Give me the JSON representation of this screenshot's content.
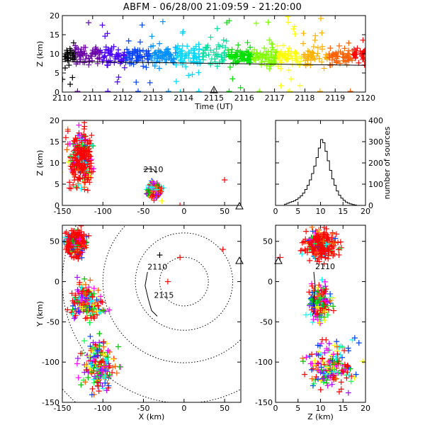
{
  "title": "ABFM - 06/28/00 21:09:59 - 21:20:00",
  "chart_data": [
    {
      "type": "scatter",
      "id": "time-height",
      "xlabel": "Time (UT)",
      "ylabel": "Z (km)",
      "xlim": [
        2110,
        2120
      ],
      "ylim": [
        0,
        20
      ],
      "xticks": [
        "2110",
        "2111",
        "2112",
        "2113",
        "2114",
        "2115",
        "2116",
        "2117",
        "2118",
        "2119",
        "2120"
      ],
      "yticks": [
        "0",
        "5",
        "10",
        "15",
        "20"
      ],
      "color_scale": "time: black → purple → blue → cyan → green → yellow → orange → red",
      "sources_summary": {
        "core_altitude_km": [
          6,
          12
        ],
        "scatter_altitude_km": [
          0,
          20
        ]
      },
      "trend_line": {
        "start_z": 8,
        "end_z": 7
      },
      "ground_markers_at_z": 0,
      "station_marker": "triangle at x 2115, z 0"
    },
    {
      "type": "scatter",
      "id": "x-height",
      "xlabel": "",
      "ylabel": "Z (km)",
      "xlim": [
        -150,
        70
      ],
      "ylim": [
        0,
        20
      ],
      "xticks": [
        "-150",
        "-100",
        "-50",
        "0",
        "50"
      ],
      "yticks": [
        "0",
        "5",
        "10",
        "15",
        "20"
      ],
      "annotation": "2110",
      "clusters": [
        {
          "x_range": [
            -150,
            -105
          ],
          "z_range": [
            2,
            20
          ],
          "dominant_color": "red"
        },
        {
          "x_range": [
            -50,
            -25
          ],
          "z_range": [
            1,
            6
          ],
          "dominant_color": "mixed"
        }
      ],
      "track": [
        [
          -50,
          8.5
        ],
        [
          -44,
          8.6
        ],
        [
          -38,
          8.5
        ],
        [
          -34,
          7.6
        ]
      ],
      "isolated_points": [
        [
          50,
          6
        ],
        [
          -5,
          0
        ]
      ],
      "station_marker": "triangle at x 70, z 0"
    },
    {
      "type": "bar",
      "id": "altitude-histogram",
      "xlabel": "",
      "ylabel": "number of sources",
      "xlim": [
        0,
        20
      ],
      "ylim": [
        0,
        400
      ],
      "xticks": [
        "0",
        "5",
        "10",
        "15",
        "20"
      ],
      "yticks": [
        "0",
        "100",
        "200",
        "300",
        "400"
      ],
      "bin_width_km": 0.5,
      "bins_start": [
        2,
        2.5,
        3,
        3.5,
        4,
        4.5,
        5,
        5.5,
        6,
        6.5,
        7,
        7.5,
        8,
        8.5,
        9,
        9.5,
        10,
        10.5,
        11,
        11.5,
        12,
        12.5,
        13,
        13.5,
        14,
        14.5,
        15,
        15.5,
        16,
        16.5,
        17,
        17.5
      ],
      "values": [
        6,
        10,
        14,
        18,
        22,
        28,
        36,
        45,
        58,
        75,
        95,
        120,
        150,
        185,
        225,
        270,
        310,
        295,
        255,
        210,
        165,
        125,
        95,
        68,
        48,
        34,
        24,
        16,
        11,
        7,
        4,
        2
      ]
    },
    {
      "type": "scatter",
      "id": "plan-view",
      "xlabel": "X (km)",
      "ylabel": "Y (km)",
      "xlim": [
        -150,
        70
      ],
      "ylim": [
        -150,
        70
      ],
      "xticks": [
        "-150",
        "-100",
        "-50",
        "0",
        "50"
      ],
      "yticks": [
        "-150",
        "-100",
        "-50",
        "0",
        "50"
      ],
      "range_rings": {
        "center": [
          0,
          0
        ],
        "radii_km": [
          30,
          60,
          100,
          150,
          200
        ],
        "style": "dotted"
      },
      "track_labels": [
        {
          "text": "2110",
          "x": -45,
          "y": 15
        },
        {
          "text": "2115",
          "x": -37,
          "y": -20
        }
      ],
      "track": [
        [
          -45,
          12
        ],
        [
          -48,
          -5
        ],
        [
          -44,
          -22
        ],
        [
          -40,
          -36
        ],
        [
          -33,
          -43
        ]
      ],
      "clusters": [
        {
          "x_range": [
            -150,
            -115
          ],
          "y_range": [
            25,
            70
          ],
          "dominant_color": "red"
        },
        {
          "x_range": [
            -150,
            -90
          ],
          "y_range": [
            -60,
            10
          ],
          "dominant_color": "mixed"
        },
        {
          "x_range": [
            -140,
            -70
          ],
          "y_range": [
            -150,
            -60
          ],
          "dominant_color": "mixed"
        }
      ],
      "isolated_points": [
        [
          -5,
          30
        ],
        [
          -30,
          33
        ],
        [
          48,
          40
        ],
        [
          -20,
          0
        ]
      ],
      "station_marker": "triangle at x 70, y 25"
    },
    {
      "type": "scatter",
      "id": "height-y",
      "xlabel": "Z (km)",
      "ylabel": "",
      "xlim": [
        0,
        20
      ],
      "ylim": [
        -150,
        70
      ],
      "xticks": [
        "0",
        "5",
        "10",
        "15",
        "20"
      ],
      "yticks": [
        "-150",
        "-100",
        "-50",
        "0",
        "50"
      ],
      "annotation": "2110",
      "clusters": [
        {
          "z_range": [
            5,
            15
          ],
          "y_range": [
            20,
            70
          ],
          "dominant_color": "red"
        },
        {
          "z_range": [
            6,
            14
          ],
          "y_range": [
            -60,
            10
          ],
          "dominant_color": "mixed"
        },
        {
          "z_range": [
            5,
            20
          ],
          "y_range": [
            -150,
            -60
          ],
          "dominant_color": "mixed"
        }
      ],
      "track": [
        [
          8.5,
          12
        ],
        [
          8.8,
          -5
        ],
        [
          8.5,
          -22
        ],
        [
          8.6,
          -36
        ],
        [
          8.2,
          -43
        ]
      ],
      "isolated_points": [
        [
          1,
          30
        ]
      ],
      "station_marker": "triangle at z 0, y 25"
    }
  ]
}
